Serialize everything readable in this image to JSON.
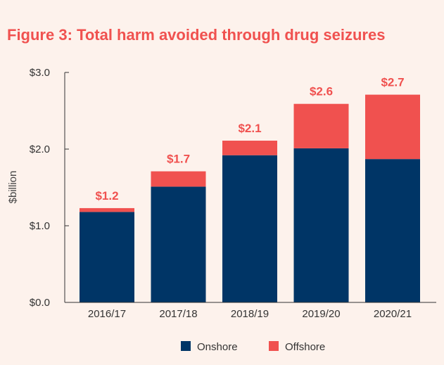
{
  "chart_data": {
    "type": "bar",
    "stacked": true,
    "title": "Figure 3: Total harm avoided through drug seizures",
    "ylabel": "$billion",
    "xlabel": "",
    "categories": [
      "2016/17",
      "2017/18",
      "2018/19",
      "2019/20",
      "2020/21"
    ],
    "series": [
      {
        "name": "Onshore",
        "color": "#003566",
        "values": [
          1.18,
          1.51,
          1.92,
          2.01,
          1.87
        ]
      },
      {
        "name": "Offshore",
        "color": "#f0514f",
        "values": [
          0.05,
          0.2,
          0.19,
          0.58,
          0.84
        ]
      }
    ],
    "totals_labels": [
      "$1.2",
      "$1.7",
      "$2.1",
      "$2.6",
      "$2.7"
    ],
    "ylim": [
      0,
      3.0
    ],
    "yticks": [
      0,
      1.0,
      2.0,
      3.0
    ],
    "ytick_labels": [
      "$0.0",
      "$1.0",
      "$2.0",
      "$3.0"
    ],
    "grid": false,
    "legend_position": "bottom-center"
  },
  "colors": {
    "title": "#f0514f",
    "label": "#f0514f",
    "axis": "#333333",
    "background": "#fdf2ec"
  }
}
